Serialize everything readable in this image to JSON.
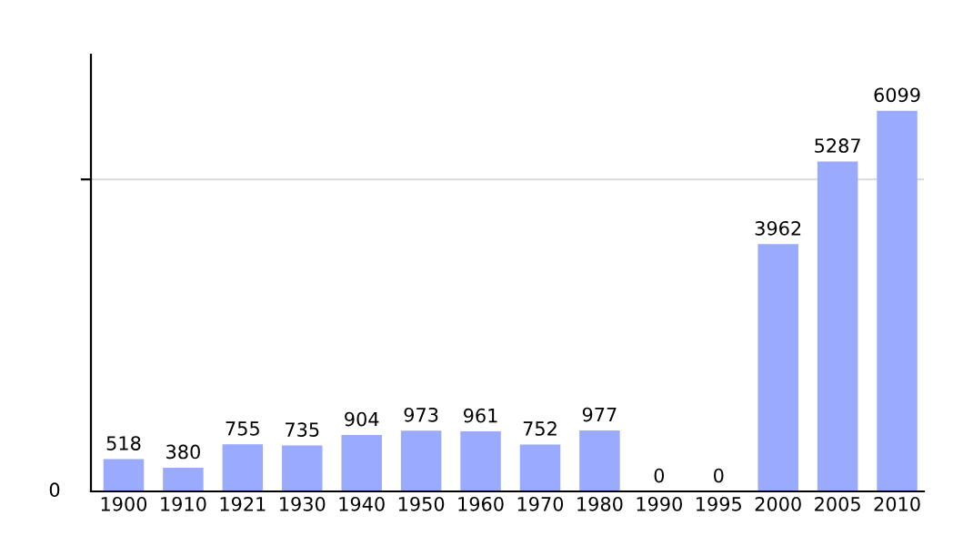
{
  "chart_data": {
    "type": "bar",
    "categories": [
      "1900",
      "1910",
      "1921",
      "1930",
      "1940",
      "1950",
      "1960",
      "1970",
      "1980",
      "1990",
      "1995",
      "2000",
      "2005",
      "2010"
    ],
    "values": [
      518,
      380,
      755,
      735,
      904,
      973,
      961,
      752,
      977,
      0,
      0,
      3962,
      5287,
      6099
    ],
    "color": "#99aaff",
    "ylim": [
      0,
      7000
    ],
    "ref_lines": [
      {
        "axis": "y",
        "value": 5000,
        "color": "#dddddd"
      }
    ],
    "annotations": [
      "0"
    ],
    "data_labels": true
  }
}
